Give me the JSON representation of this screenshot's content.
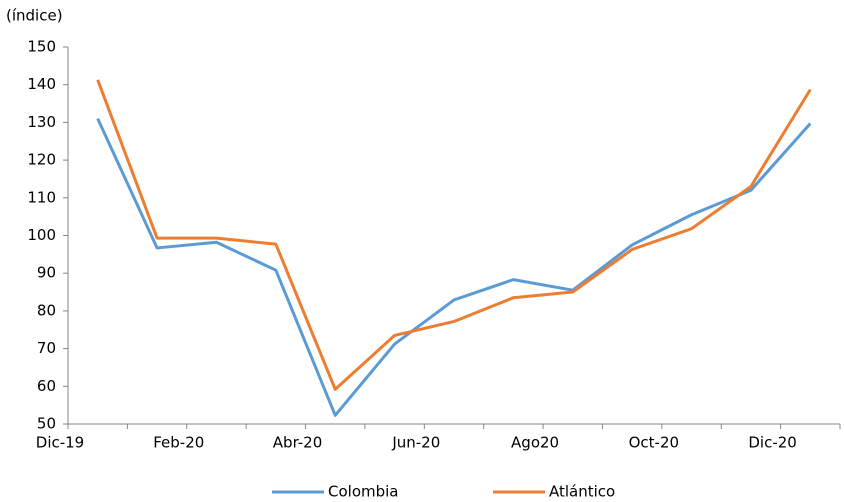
{
  "chart_data": {
    "type": "line",
    "y_label": "(índice)",
    "categories": [
      "Dic-19",
      null,
      "Feb-20",
      null,
      "Abr-20",
      null,
      "Jun-20",
      null,
      "Ago20",
      null,
      "Oct-20",
      null,
      "Dic-20"
    ],
    "series": [
      {
        "name": "Colombia",
        "color": "#5b9bd5",
        "values": [
          131,
          96.7,
          98.2,
          90.8,
          52.3,
          71.2,
          82.9,
          88.3,
          85.5,
          97.5,
          105.5,
          112,
          129.7
        ]
      },
      {
        "name": "Atlántico",
        "color": "#ed7d31",
        "values": [
          141.3,
          99.3,
          99.3,
          97.7,
          59.2,
          73.5,
          77.2,
          83.5,
          85,
          96.3,
          101.8,
          113,
          138.7
        ]
      }
    ],
    "ylim": [
      50,
      150
    ],
    "yticks": [
      50,
      60,
      70,
      80,
      90,
      100,
      110,
      120,
      130,
      140,
      150
    ],
    "grid": false,
    "legend": "bottom"
  }
}
